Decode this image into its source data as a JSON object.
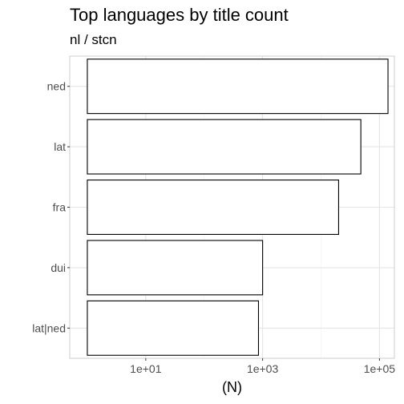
{
  "chart_data": {
    "type": "bar",
    "orientation": "horizontal",
    "title": "Top languages by title count",
    "subtitle": "nl / stcn",
    "xlabel": "(N)",
    "ylabel": "",
    "x_scale": "log10",
    "xlim": [
      0.5,
      180000
    ],
    "x_ticks": [
      10,
      1000,
      100000
    ],
    "x_tick_labels": [
      "1e+01",
      "1e+03",
      "1e+05"
    ],
    "categories": [
      "ned",
      "lat",
      "fra",
      "dui",
      "lat|ned"
    ],
    "values": [
      140000,
      48000,
      20000,
      1000,
      850
    ],
    "grid": true,
    "bar_fill": "#ffffff",
    "bar_stroke": "#000000",
    "panel_border": "#cccccc",
    "grid_major_color": "#e5e5e5",
    "grid_minor_color": "#f2f2f2"
  }
}
